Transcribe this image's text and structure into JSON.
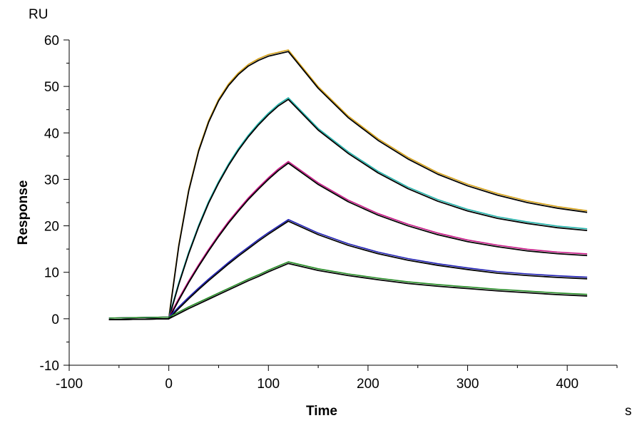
{
  "chart_data": {
    "type": "line",
    "title": "",
    "xlabel": "Time",
    "ylabel": "Response",
    "x_unit": "s",
    "y_unit": "RU",
    "xlim": [
      -100,
      450
    ],
    "ylim": [
      -10,
      60
    ],
    "x_ticks_major": [
      -100,
      0,
      100,
      200,
      300,
      400
    ],
    "y_ticks_major": [
      -10,
      0,
      10,
      20,
      30,
      40,
      50,
      60
    ],
    "x_ticks_minor": [
      -50,
      50,
      150,
      250,
      350,
      450
    ],
    "y_ticks_minor": [
      -5,
      5,
      15,
      25,
      35,
      45,
      55
    ],
    "grid": false,
    "legend": "none",
    "series": [
      {
        "color": "#D4A017",
        "fit_color": "#000000",
        "x": [
          -60,
          0,
          10,
          20,
          30,
          40,
          50,
          60,
          70,
          80,
          90,
          100,
          110,
          120,
          150,
          180,
          210,
          240,
          270,
          300,
          330,
          360,
          390,
          420
        ],
        "values": [
          -0.2,
          0,
          15.6,
          27.5,
          36.1,
          42.3,
          46.9,
          50.2,
          52.6,
          54.4,
          55.6,
          56.5,
          57.0,
          57.5,
          49.6,
          43.3,
          38.4,
          34.4,
          31.1,
          28.6,
          26.6,
          25.0,
          23.8,
          22.9
        ]
      },
      {
        "color": "#20B2AA",
        "fit_color": "#000000",
        "x": [
          -60,
          0,
          10,
          20,
          30,
          40,
          50,
          60,
          70,
          80,
          90,
          100,
          110,
          120,
          150,
          180,
          210,
          240,
          270,
          300,
          330,
          360,
          390,
          420
        ],
        "values": [
          -0.2,
          0,
          7.4,
          14.0,
          19.8,
          24.9,
          29.2,
          33.0,
          36.3,
          39.2,
          41.7,
          43.9,
          45.8,
          47.2,
          40.6,
          35.6,
          31.4,
          28.0,
          25.3,
          23.2,
          21.6,
          20.5,
          19.6,
          19.0
        ]
      },
      {
        "color": "#C71585",
        "fit_color": "#000000",
        "x": [
          -60,
          0,
          10,
          20,
          30,
          40,
          50,
          60,
          70,
          80,
          90,
          100,
          110,
          120,
          150,
          180,
          210,
          240,
          270,
          300,
          330,
          360,
          390,
          420
        ],
        "values": [
          -0.2,
          0,
          4.0,
          7.8,
          11.3,
          14.6,
          17.7,
          20.6,
          23.2,
          25.7,
          27.9,
          30.0,
          31.9,
          33.5,
          28.9,
          25.2,
          22.3,
          20.0,
          18.1,
          16.6,
          15.5,
          14.6,
          14.0,
          13.6
        ]
      },
      {
        "color": "#1E1EB4",
        "fit_color": "#000000",
        "x": [
          -60,
          0,
          10,
          20,
          30,
          40,
          50,
          60,
          70,
          80,
          90,
          100,
          110,
          120,
          150,
          180,
          210,
          240,
          270,
          300,
          330,
          360,
          390,
          420
        ],
        "values": [
          -0.2,
          0,
          2.2,
          4.3,
          6.3,
          8.2,
          10.0,
          11.8,
          13.5,
          15.1,
          16.7,
          18.2,
          19.6,
          21.0,
          18.1,
          15.8,
          14.0,
          12.6,
          11.5,
          10.6,
          9.8,
          9.3,
          8.9,
          8.6
        ]
      },
      {
        "color": "#228B22",
        "fit_color": "#000000",
        "x": [
          -60,
          0,
          10,
          20,
          30,
          40,
          50,
          60,
          70,
          80,
          90,
          100,
          110,
          120,
          150,
          180,
          210,
          240,
          270,
          300,
          330,
          360,
          390,
          420
        ],
        "values": [
          -0.2,
          0,
          1.1,
          2.2,
          3.2,
          4.2,
          5.2,
          6.2,
          7.2,
          8.2,
          9.1,
          10.1,
          11.0,
          11.9,
          10.4,
          9.3,
          8.4,
          7.6,
          7.0,
          6.5,
          6.0,
          5.6,
          5.2,
          4.9
        ]
      }
    ]
  }
}
